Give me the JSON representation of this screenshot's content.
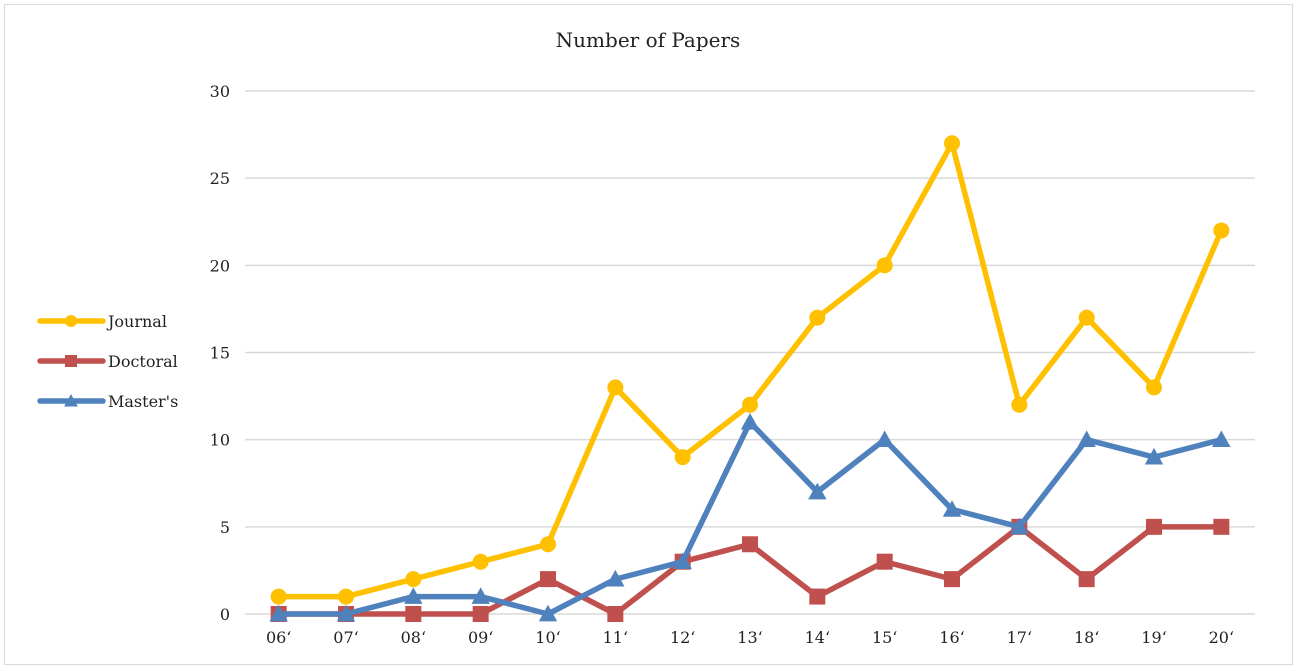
{
  "chart_data": {
    "type": "line",
    "title": "Number of Papers",
    "xlabel": "",
    "ylabel": "",
    "categories": [
      "06‘",
      "07‘",
      "08‘",
      "09‘",
      "10‘",
      "11‘",
      "12‘",
      "13‘",
      "14‘",
      "15‘",
      "16‘",
      "17‘",
      "18‘",
      "19‘",
      "20‘"
    ],
    "ylim": [
      0,
      30
    ],
    "yticks": [
      0,
      5,
      10,
      15,
      20,
      25,
      30
    ],
    "grid": true,
    "legend_position": "left",
    "series": [
      {
        "name": "Journal",
        "color": "#FFC000",
        "marker": "circle",
        "values": [
          1,
          1,
          2,
          3,
          4,
          13,
          9,
          12,
          17,
          20,
          27,
          12,
          17,
          13,
          22
        ]
      },
      {
        "name": "Doctoral",
        "color": "#C0504D",
        "marker": "square",
        "values": [
          0,
          0,
          0,
          0,
          2,
          0,
          3,
          4,
          1,
          3,
          2,
          5,
          2,
          5,
          5
        ]
      },
      {
        "name": "Master's",
        "color": "#4F81BD",
        "marker": "triangle",
        "values": [
          0,
          0,
          1,
          1,
          0,
          2,
          3,
          11,
          7,
          10,
          6,
          5,
          10,
          9,
          10
        ]
      }
    ]
  }
}
